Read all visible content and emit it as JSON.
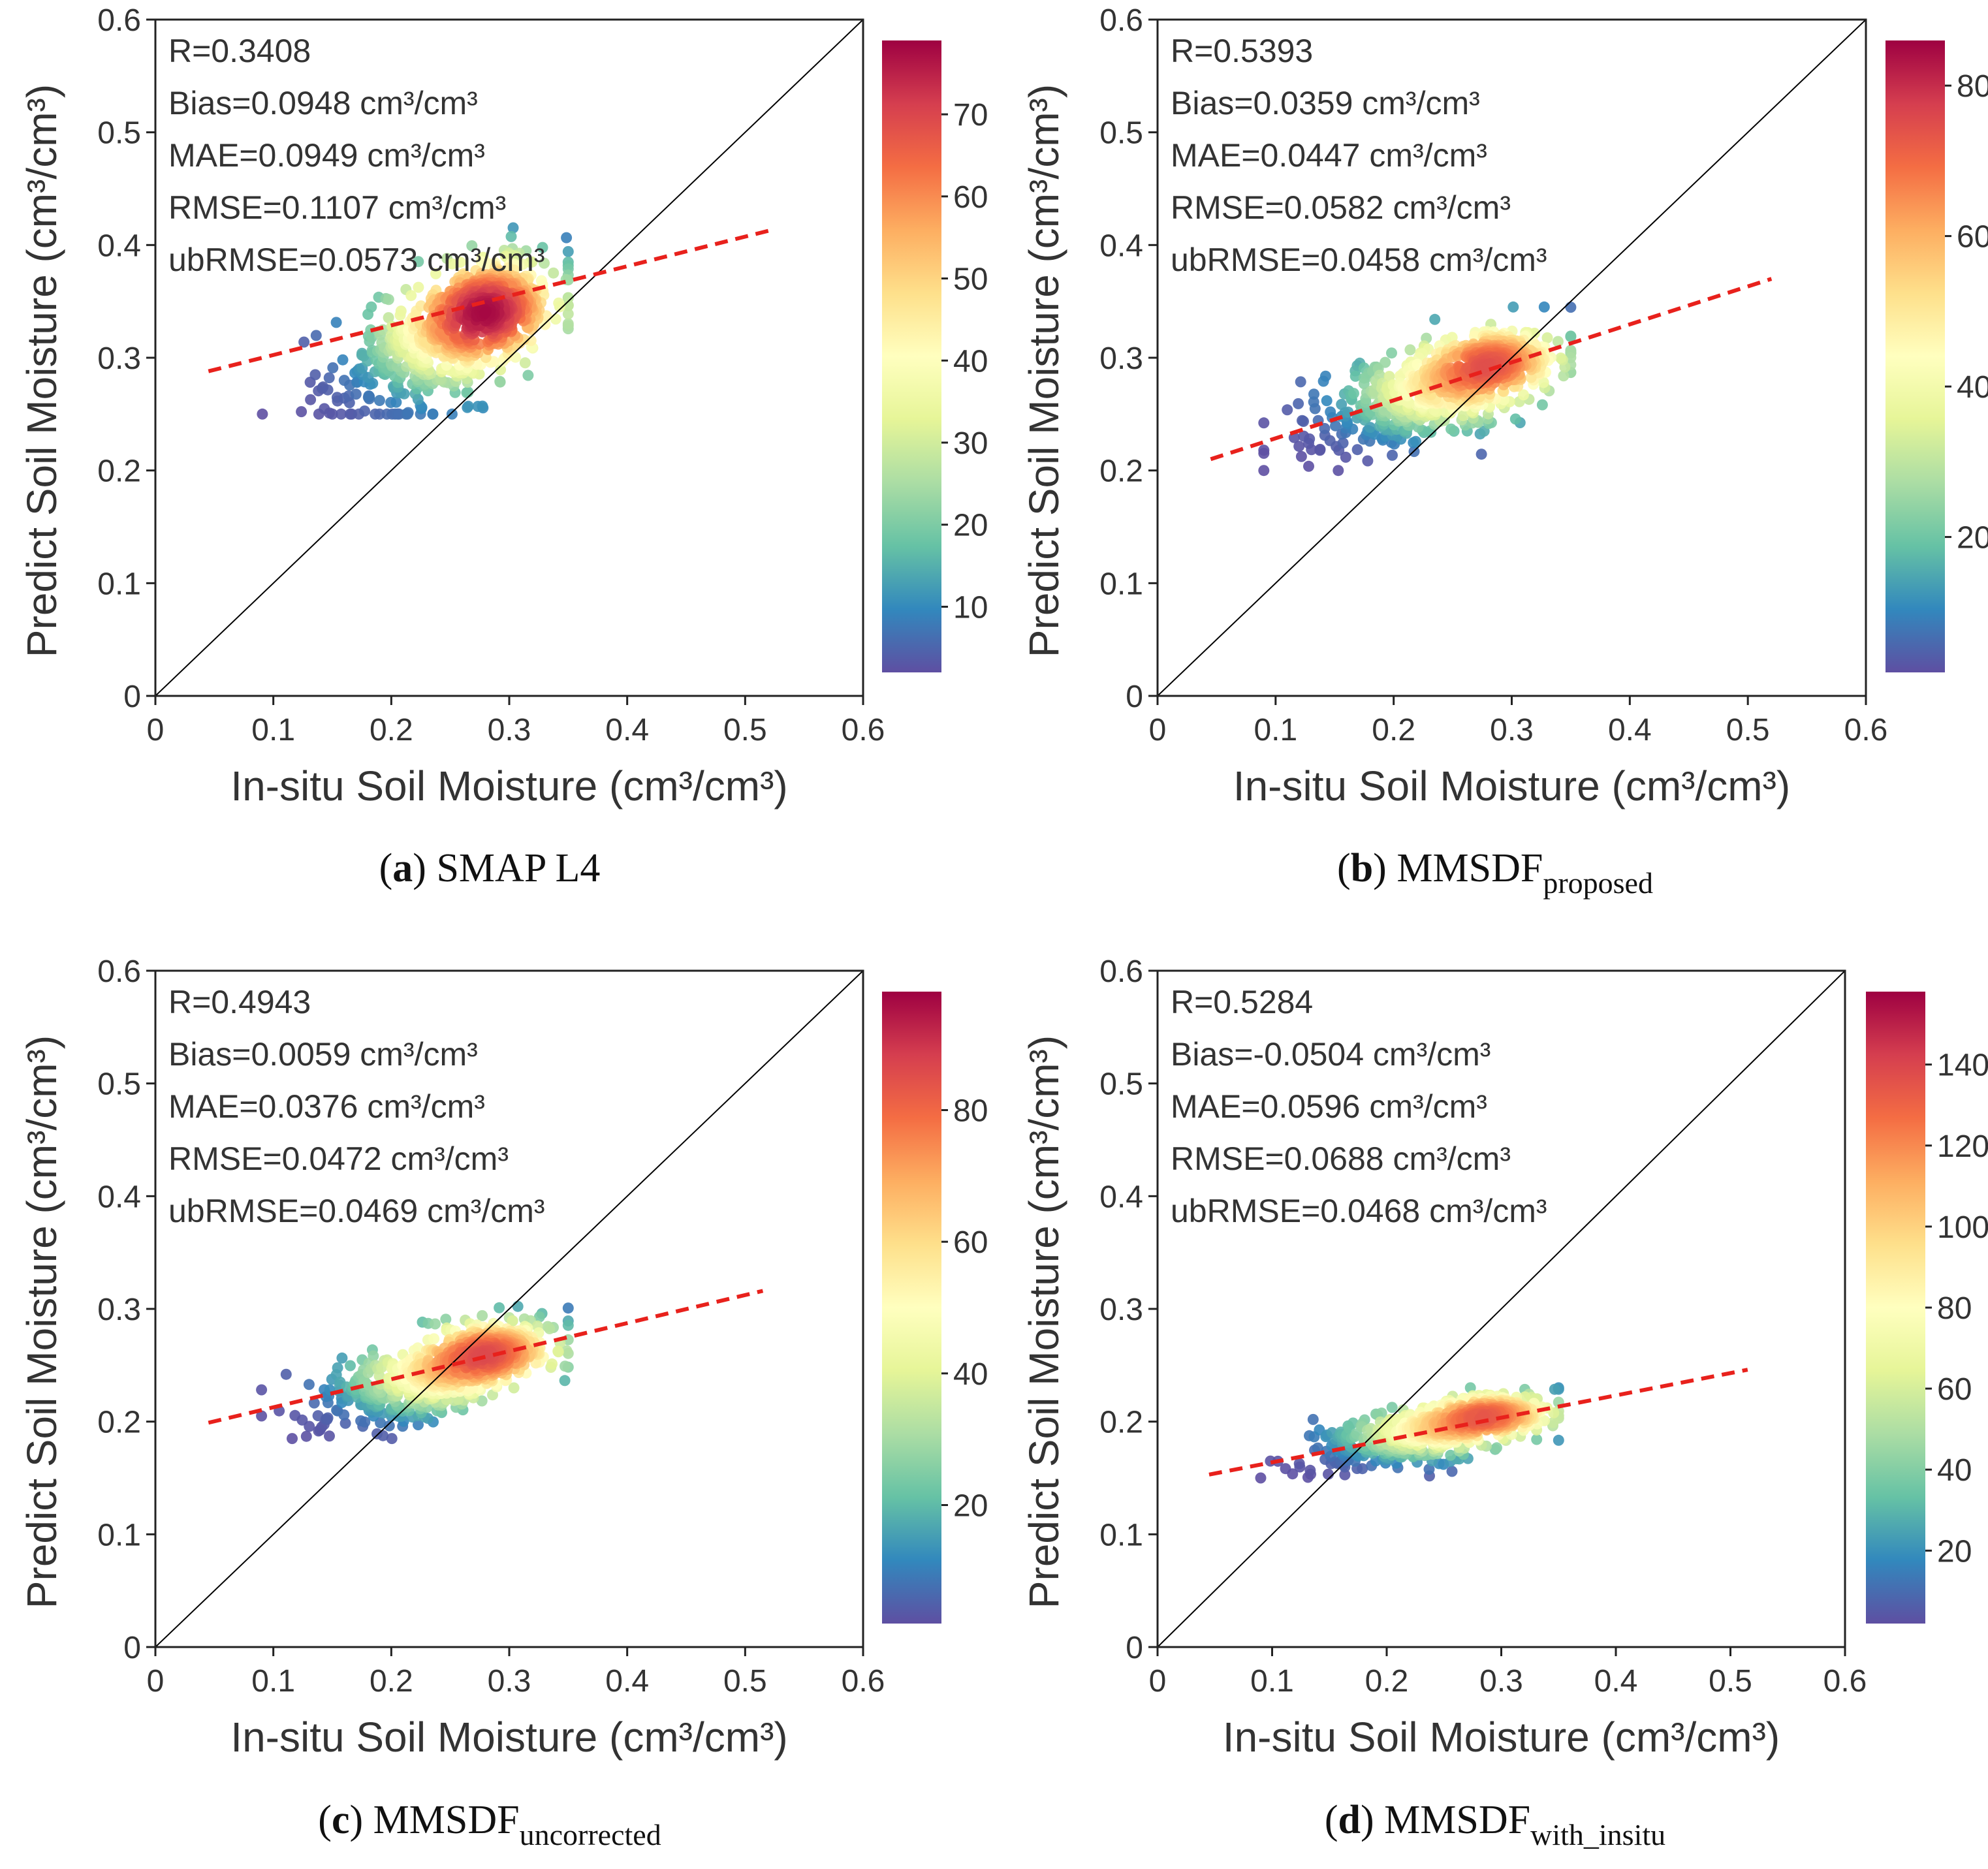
{
  "chart_data": [
    {
      "id": "a",
      "type": "scatter",
      "xlabel": "In-situ Soil Moisture (cm³/cm³)",
      "ylabel": "Predict Soil Moisture (cm³/cm³)",
      "xlim": [
        0,
        0.6
      ],
      "ylim": [
        0,
        0.6
      ],
      "xticks": [
        "0",
        "0.1",
        "0.2",
        "0.3",
        "0.4",
        "0.5",
        "0.6"
      ],
      "yticks": [
        "0",
        "0.1",
        "0.2",
        "0.3",
        "0.4",
        "0.5",
        "0.6"
      ],
      "stats": [
        "R=0.3408",
        "Bias=0.0948 cm³/cm³",
        "MAE=0.0949 cm³/cm³",
        "RMSE=0.1107 cm³/cm³",
        "ubRMSE=0.0573 cm³/cm³"
      ],
      "fit_line": {
        "x": [
          0.045,
          0.525
        ],
        "y": [
          0.288,
          0.414
        ]
      },
      "one_to_one": true,
      "cluster": {
        "cx": 0.25,
        "cy": 0.32,
        "sx": 0.05,
        "sy": 0.035,
        "corr": 0.6,
        "peak": [
          0.29,
          0.35
        ],
        "x_range": [
          0.09,
          0.35
        ],
        "y_range": [
          0.25,
          0.44
        ]
      },
      "colorbar": {
        "min": 2,
        "max": 79,
        "ticks": [
          10,
          20,
          30,
          40,
          50,
          60,
          70
        ],
        "tick_labels": [
          "10",
          "20",
          "30",
          "40",
          "50",
          "60",
          "70"
        ]
      },
      "caption": {
        "letter": "(a)",
        "name": "SMAP L4",
        "sub": ""
      }
    },
    {
      "id": "b",
      "type": "scatter",
      "xlabel": "In-situ Soil Moisture (cm³/cm³)",
      "ylabel": "Predict Soil Moisture (cm³/cm³)",
      "xlim": [
        0,
        0.6
      ],
      "ylim": [
        0,
        0.6
      ],
      "xticks": [
        "0",
        "0.1",
        "0.2",
        "0.3",
        "0.4",
        "0.5",
        "0.6"
      ],
      "yticks": [
        "0",
        "0.1",
        "0.2",
        "0.3",
        "0.4",
        "0.5",
        "0.6"
      ],
      "stats": [
        "R=0.5393",
        "Bias=0.0359 cm³/cm³",
        "MAE=0.0447 cm³/cm³",
        "RMSE=0.0582 cm³/cm³",
        "ubRMSE=0.0458 cm³/cm³"
      ],
      "fit_line": {
        "x": [
          0.045,
          0.52
        ],
        "y": [
          0.21,
          0.37
        ]
      },
      "one_to_one": true,
      "cluster": {
        "cx": 0.235,
        "cy": 0.27,
        "sx": 0.05,
        "sy": 0.025,
        "corr": 0.6,
        "peak": [
          0.29,
          0.3
        ],
        "x_range": [
          0.09,
          0.35
        ],
        "y_range": [
          0.2,
          0.345
        ]
      },
      "colorbar": {
        "min": 2,
        "max": 86,
        "ticks": [
          20,
          40,
          60,
          80
        ],
        "tick_labels": [
          "20",
          "40",
          "60",
          "80"
        ]
      },
      "caption": {
        "letter": "(b)",
        "name": "MMSDF",
        "sub": "proposed"
      }
    },
    {
      "id": "c",
      "type": "scatter",
      "xlabel": "In-situ Soil Moisture (cm³/cm³)",
      "ylabel": "Predict Soil Moisture (cm³/cm³)",
      "xlim": [
        0,
        0.6
      ],
      "ylim": [
        0,
        0.6
      ],
      "xticks": [
        "0",
        "0.1",
        "0.2",
        "0.3",
        "0.4",
        "0.5",
        "0.6"
      ],
      "yticks": [
        "0",
        "0.1",
        "0.2",
        "0.3",
        "0.4",
        "0.5",
        "0.6"
      ],
      "stats": [
        "R=0.4943",
        "Bias=0.0059 cm³/cm³",
        "MAE=0.0376 cm³/cm³",
        "RMSE=0.0472 cm³/cm³",
        "ubRMSE=0.0469 cm³/cm³"
      ],
      "fit_line": {
        "x": [
          0.045,
          0.515
        ],
        "y": [
          0.199,
          0.316
        ]
      },
      "one_to_one": true,
      "cluster": {
        "cx": 0.235,
        "cy": 0.24,
        "sx": 0.05,
        "sy": 0.022,
        "corr": 0.6,
        "peak": [
          0.29,
          0.265
        ],
        "x_range": [
          0.09,
          0.35
        ],
        "y_range": [
          0.185,
          0.31
        ]
      },
      "colorbar": {
        "min": 2,
        "max": 98,
        "ticks": [
          20,
          40,
          60,
          80
        ],
        "tick_labels": [
          "20",
          "40",
          "60",
          "80"
        ]
      },
      "caption": {
        "letter": "(c)",
        "name": "MMSDF",
        "sub": "uncorrected"
      }
    },
    {
      "id": "d",
      "type": "scatter",
      "xlabel": "In-situ Soil Moisture (cm³/cm³)",
      "ylabel": "Predict Soil Moisture (cm³/cm³)",
      "xlim": [
        0,
        0.6
      ],
      "ylim": [
        0,
        0.6
      ],
      "xticks": [
        "0",
        "0.1",
        "0.2",
        "0.3",
        "0.4",
        "0.5",
        "0.6"
      ],
      "yticks": [
        "0",
        "0.1",
        "0.2",
        "0.3",
        "0.4",
        "0.5",
        "0.6"
      ],
      "stats": [
        "R=0.5284",
        "Bias=-0.0504 cm³/cm³",
        "MAE=0.0596 cm³/cm³",
        "RMSE=0.0688 cm³/cm³",
        "ubRMSE=0.0468 cm³/cm³"
      ],
      "fit_line": {
        "x": [
          0.045,
          0.515
        ],
        "y": [
          0.153,
          0.246
        ]
      },
      "one_to_one": true,
      "cluster": {
        "cx": 0.235,
        "cy": 0.19,
        "sx": 0.05,
        "sy": 0.015,
        "corr": 0.6,
        "peak": [
          0.295,
          0.208
        ],
        "x_range": [
          0.09,
          0.35
        ],
        "y_range": [
          0.15,
          0.23
        ]
      },
      "colorbar": {
        "min": 2,
        "max": 158,
        "ticks": [
          20,
          40,
          60,
          80,
          100,
          120,
          140
        ],
        "tick_labels": [
          "20",
          "40",
          "60",
          "80",
          "100",
          "120",
          "140"
        ]
      },
      "caption": {
        "letter": "(d)",
        "name": "MMSDF",
        "sub": "with_insitu"
      }
    }
  ],
  "colormap": [
    "#5e4fa2",
    "#3288bd",
    "#66c2a5",
    "#abdda4",
    "#e6f598",
    "#ffffbf",
    "#fee08b",
    "#fdae61",
    "#f46d43",
    "#d53e4f",
    "#9e0142"
  ],
  "fit_line_color": "#e8211c"
}
